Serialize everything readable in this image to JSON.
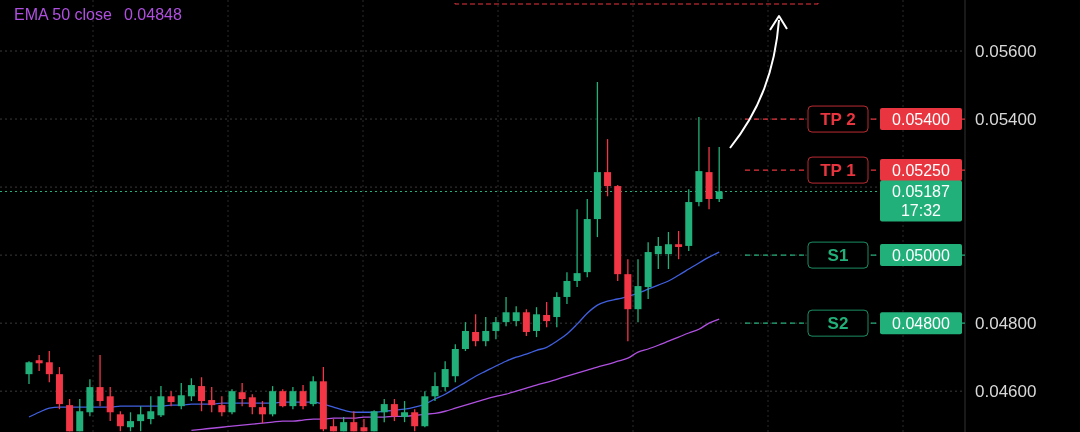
{
  "chart_data": {
    "type": "candlestick",
    "categories": [
      null,
      null,
      null,
      null,
      null,
      null,
      null,
      null,
      null,
      null,
      null,
      null,
      null,
      null,
      null,
      null,
      null,
      null,
      null,
      null,
      null,
      null,
      null,
      null,
      null,
      null,
      null,
      null,
      null,
      null,
      null,
      null,
      null,
      null,
      null,
      null,
      null,
      null,
      null,
      null,
      null,
      null,
      null,
      null,
      null,
      null,
      null,
      null,
      null,
      null,
      null,
      null,
      null,
      null,
      null,
      null,
      null,
      null,
      null,
      null,
      null,
      null,
      null,
      null,
      null,
      null,
      null,
      null,
      null
    ],
    "ohlc": [
      [
        0.0465,
        0.04688,
        0.04621,
        0.04685
      ],
      [
        0.04691,
        0.04706,
        0.04659,
        0.04682
      ],
      [
        0.04685,
        0.04718,
        0.04626,
        0.0465
      ],
      [
        0.0465,
        0.04671,
        0.04547,
        0.04562
      ],
      [
        0.04559,
        0.04577,
        0.04482,
        0.04482
      ],
      [
        0.04482,
        0.04577,
        0.04482,
        0.04541
      ],
      [
        0.04538,
        0.04635,
        0.04526,
        0.04612
      ],
      [
        0.04612,
        0.04706,
        0.04556,
        0.04571
      ],
      [
        0.04585,
        0.04612,
        0.04512,
        0.04538
      ],
      [
        0.04532,
        0.04541,
        0.04482,
        0.04497
      ],
      [
        0.04494,
        0.04538,
        0.04482,
        0.04512
      ],
      [
        0.04512,
        0.04556,
        0.04482,
        0.04532
      ],
      [
        0.04518,
        0.04585,
        0.04503,
        0.04541
      ],
      [
        0.04529,
        0.04615,
        0.04524,
        0.04585
      ],
      [
        0.04585,
        0.046,
        0.04556,
        0.04568
      ],
      [
        0.04556,
        0.04624,
        0.04547,
        0.04588
      ],
      [
        0.04585,
        0.04638,
        0.04571,
        0.04618
      ],
      [
        0.04615,
        0.04641,
        0.04541,
        0.04571
      ],
      [
        0.04574,
        0.04612,
        0.04538,
        0.04559
      ],
      [
        0.04559,
        0.04585,
        0.04526,
        0.04538
      ],
      [
        0.04538,
        0.04606,
        0.04532,
        0.046
      ],
      [
        0.04597,
        0.04624,
        0.04556,
        0.04577
      ],
      [
        0.04582,
        0.04591,
        0.04532,
        0.04553
      ],
      [
        0.04553,
        0.04571,
        0.04506,
        0.04532
      ],
      [
        0.04532,
        0.04615,
        0.04526,
        0.046
      ],
      [
        0.046,
        0.04606,
        0.04553,
        0.04556
      ],
      [
        0.04556,
        0.04612,
        0.04547,
        0.046
      ],
      [
        0.046,
        0.04618,
        0.04547,
        0.04556
      ],
      [
        0.04562,
        0.04644,
        0.04556,
        0.04629
      ],
      [
        0.04629,
        0.04671,
        0.04482,
        0.04488
      ],
      [
        0.04497,
        0.04518,
        0.04482,
        0.04482
      ],
      [
        0.04482,
        0.04524,
        0.04482,
        0.04509
      ],
      [
        0.04509,
        0.04541,
        0.04482,
        0.04482
      ],
      [
        0.04494,
        0.04518,
        0.04482,
        0.04482
      ],
      [
        0.04482,
        0.04544,
        0.04482,
        0.04541
      ],
      [
        0.04538,
        0.04577,
        0.04509,
        0.04562
      ],
      [
        0.04562,
        0.04577,
        0.04512,
        0.04526
      ],
      [
        0.04524,
        0.04571,
        0.04509,
        0.04538
      ],
      [
        0.04538,
        0.04547,
        0.04482,
        0.04497
      ],
      [
        0.04497,
        0.046,
        0.04494,
        0.04585
      ],
      [
        0.04585,
        0.04656,
        0.04571,
        0.04615
      ],
      [
        0.04612,
        0.04688,
        0.046,
        0.04665
      ],
      [
        0.04644,
        0.04738,
        0.04626,
        0.04724
      ],
      [
        0.04724,
        0.04803,
        0.04718,
        0.04777
      ],
      [
        0.04774,
        0.04826,
        0.04732,
        0.04747
      ],
      [
        0.04747,
        0.04818,
        0.04732,
        0.04777
      ],
      [
        0.04777,
        0.04818,
        0.04753,
        0.04803
      ],
      [
        0.04803,
        0.04877,
        0.04791,
        0.04832
      ],
      [
        0.04806,
        0.0485,
        0.04791,
        0.04832
      ],
      [
        0.04832,
        0.04841,
        0.04762,
        0.04774
      ],
      [
        0.04777,
        0.04847,
        0.04759,
        0.04826
      ],
      [
        0.04824,
        0.04862,
        0.04788,
        0.04806
      ],
      [
        0.04818,
        0.04891,
        0.04788,
        0.04877
      ],
      [
        0.04877,
        0.0495,
        0.04856,
        0.04924
      ],
      [
        0.04924,
        0.05135,
        0.04906,
        0.04947
      ],
      [
        0.0495,
        0.05165,
        0.04935,
        0.05106
      ],
      [
        0.05106,
        0.05509,
        0.05053,
        0.05244
      ],
      [
        0.05244,
        0.05341,
        0.05173,
        0.05203
      ],
      [
        0.05203,
        0.05206,
        0.04924,
        0.04944
      ],
      [
        0.04944,
        0.04988,
        0.04747,
        0.04841
      ],
      [
        0.04841,
        0.04988,
        0.04803,
        0.04909
      ],
      [
        0.04906,
        0.05038,
        0.04871,
        0.05009
      ],
      [
        0.05003,
        0.05053,
        0.04959,
        0.05027
      ],
      [
        0.05003,
        0.05068,
        0.04959,
        0.05032
      ],
      [
        0.05032,
        0.05071,
        0.04988,
        0.05024
      ],
      [
        0.05027,
        0.05194,
        0.05012,
        0.05156
      ],
      [
        0.05156,
        0.05406,
        0.05144,
        0.05247
      ],
      [
        0.05244,
        0.05318,
        0.05135,
        0.05165
      ],
      [
        0.05165,
        0.05318,
        0.05156,
        0.05187
      ]
    ],
    "colors": [
      "#22b07a",
      "#f23645",
      "#f23645",
      "#f23645",
      "#f23645",
      "#22b07a",
      "#22b07a",
      "#f23645",
      "#f23645",
      "#f23645",
      "#22b07a",
      "#22b07a",
      "#22b07a",
      "#22b07a",
      "#f23645",
      "#22b07a",
      "#22b07a",
      "#f23645",
      "#f23645",
      "#f23645",
      "#22b07a",
      "#f23645",
      "#f23645",
      "#f23645",
      "#22b07a",
      "#f23645",
      "#22b07a",
      "#f23645",
      "#22b07a",
      "#f23645",
      "#f23645",
      "#22b07a",
      "#f23645",
      "#f23645",
      "#22b07a",
      "#22b07a",
      "#f23645",
      "#22b07a",
      "#f23645",
      "#22b07a",
      "#22b07a",
      "#22b07a",
      "#22b07a",
      "#22b07a",
      "#f23645",
      "#22b07a",
      "#22b07a",
      "#22b07a",
      "#22b07a",
      "#f23645",
      "#22b07a",
      "#f23645",
      "#22b07a",
      "#22b07a",
      "#22b07a",
      "#22b07a",
      "#22b07a",
      "#f23645",
      "#f23645",
      "#f23645",
      "#22b07a",
      "#22b07a",
      "#22b07a",
      "#22b07a",
      "#f23645",
      "#22b07a",
      "#22b07a",
      "#f23645",
      "#22b07a"
    ],
    "series": [
      {
        "type": "line",
        "color": "#4060e0",
        "values": [
          0.04524,
          0.04538,
          0.0455,
          0.04553,
          0.04553,
          0.04553,
          0.04553,
          0.04553,
          0.04553,
          0.04556,
          0.04556,
          0.04556,
          0.04556,
          0.04556,
          0.04559,
          0.04559,
          0.04562,
          0.04562,
          0.04562,
          0.04565,
          0.04565,
          0.04565,
          0.04565,
          0.04565,
          0.04565,
          0.04568,
          0.04568,
          0.04568,
          0.04568,
          0.04562,
          0.04553,
          0.04544,
          0.04538,
          0.04538,
          0.04538,
          0.04541,
          0.04544,
          0.04547,
          0.04553,
          0.04562,
          0.04577,
          0.04591,
          0.04609,
          0.04626,
          0.04644,
          0.04659,
          0.04674,
          0.04688,
          0.047,
          0.04709,
          0.0472,
          0.04729,
          0.04747,
          0.04768,
          0.04797,
          0.04829,
          0.04853,
          0.04865,
          0.04871,
          0.04879,
          0.04888,
          0.049,
          0.04912,
          0.04924,
          0.04941,
          0.04959,
          0.04977,
          0.04994,
          0.05009
        ]
      },
      {
        "type": "line",
        "name": "EMA 50 close",
        "color": "#b050e0",
        "values": [
          null,
          null,
          null,
          null,
          null,
          null,
          null,
          null,
          null,
          null,
          null,
          null,
          null,
          null,
          null,
          null,
          0.04485,
          0.04488,
          0.04491,
          0.04494,
          0.04497,
          0.045,
          0.04503,
          0.04506,
          0.04509,
          0.04512,
          0.04512,
          0.04515,
          0.04518,
          0.04518,
          0.04521,
          0.04521,
          0.04521,
          0.04524,
          0.04524,
          0.04524,
          0.04526,
          0.04526,
          0.04529,
          0.04532,
          0.04535,
          0.04541,
          0.0455,
          0.04559,
          0.04568,
          0.04577,
          0.04585,
          0.04591,
          0.046,
          0.04609,
          0.04618,
          0.04626,
          0.04635,
          0.04644,
          0.04653,
          0.04662,
          0.04671,
          0.04679,
          0.04688,
          0.04697,
          0.04715,
          0.04724,
          0.04735,
          0.04747,
          0.04759,
          0.04771,
          0.04782,
          0.048,
          0.04812
        ]
      }
    ],
    "ylim": [
      0.0448,
      0.0575
    ],
    "yticks": [
      {
        "value": 0.046,
        "label": "0.04600"
      },
      {
        "value": 0.048,
        "label": "0.04800"
      },
      {
        "value": 0.05,
        "label": null
      },
      {
        "value": 0.052,
        "label": null
      },
      {
        "value": 0.054,
        "label": "0.05400"
      },
      {
        "value": 0.056,
        "label": "0.05600"
      }
    ],
    "grid": true,
    "ref_lines": [
      {
        "axis": "y",
        "value": 0.054,
        "label": "TP 2",
        "color": "#e8353f",
        "line_style": "dashed"
      },
      {
        "axis": "y",
        "value": 0.0525,
        "label": "TP 1",
        "color": "#e8353f",
        "line_style": "dashed"
      },
      {
        "axis": "y",
        "value": 0.05187,
        "label": null,
        "color": "#22b07a",
        "line_style": "dotted"
      },
      {
        "axis": "y",
        "value": 0.05,
        "label": "S1",
        "color": "#22b07a",
        "line_style": "dashed"
      },
      {
        "axis": "y",
        "value": 0.048,
        "label": "S2",
        "color": "#22b07a",
        "line_style": "dashed"
      }
    ],
    "annotations": [
      "0.04848",
      {
        "text": "0.05400",
        "y": 0.054
      },
      {
        "text": "0.05250",
        "y": 0.0525
      },
      {
        "text": "0.05187",
        "y": 0.05187
      },
      {
        "text": "17:32",
        "y": 0.05187
      },
      {
        "text": "0.05000",
        "y": 0.05
      },
      {
        "text": "0.04800",
        "y": 0.048
      }
    ]
  }
}
